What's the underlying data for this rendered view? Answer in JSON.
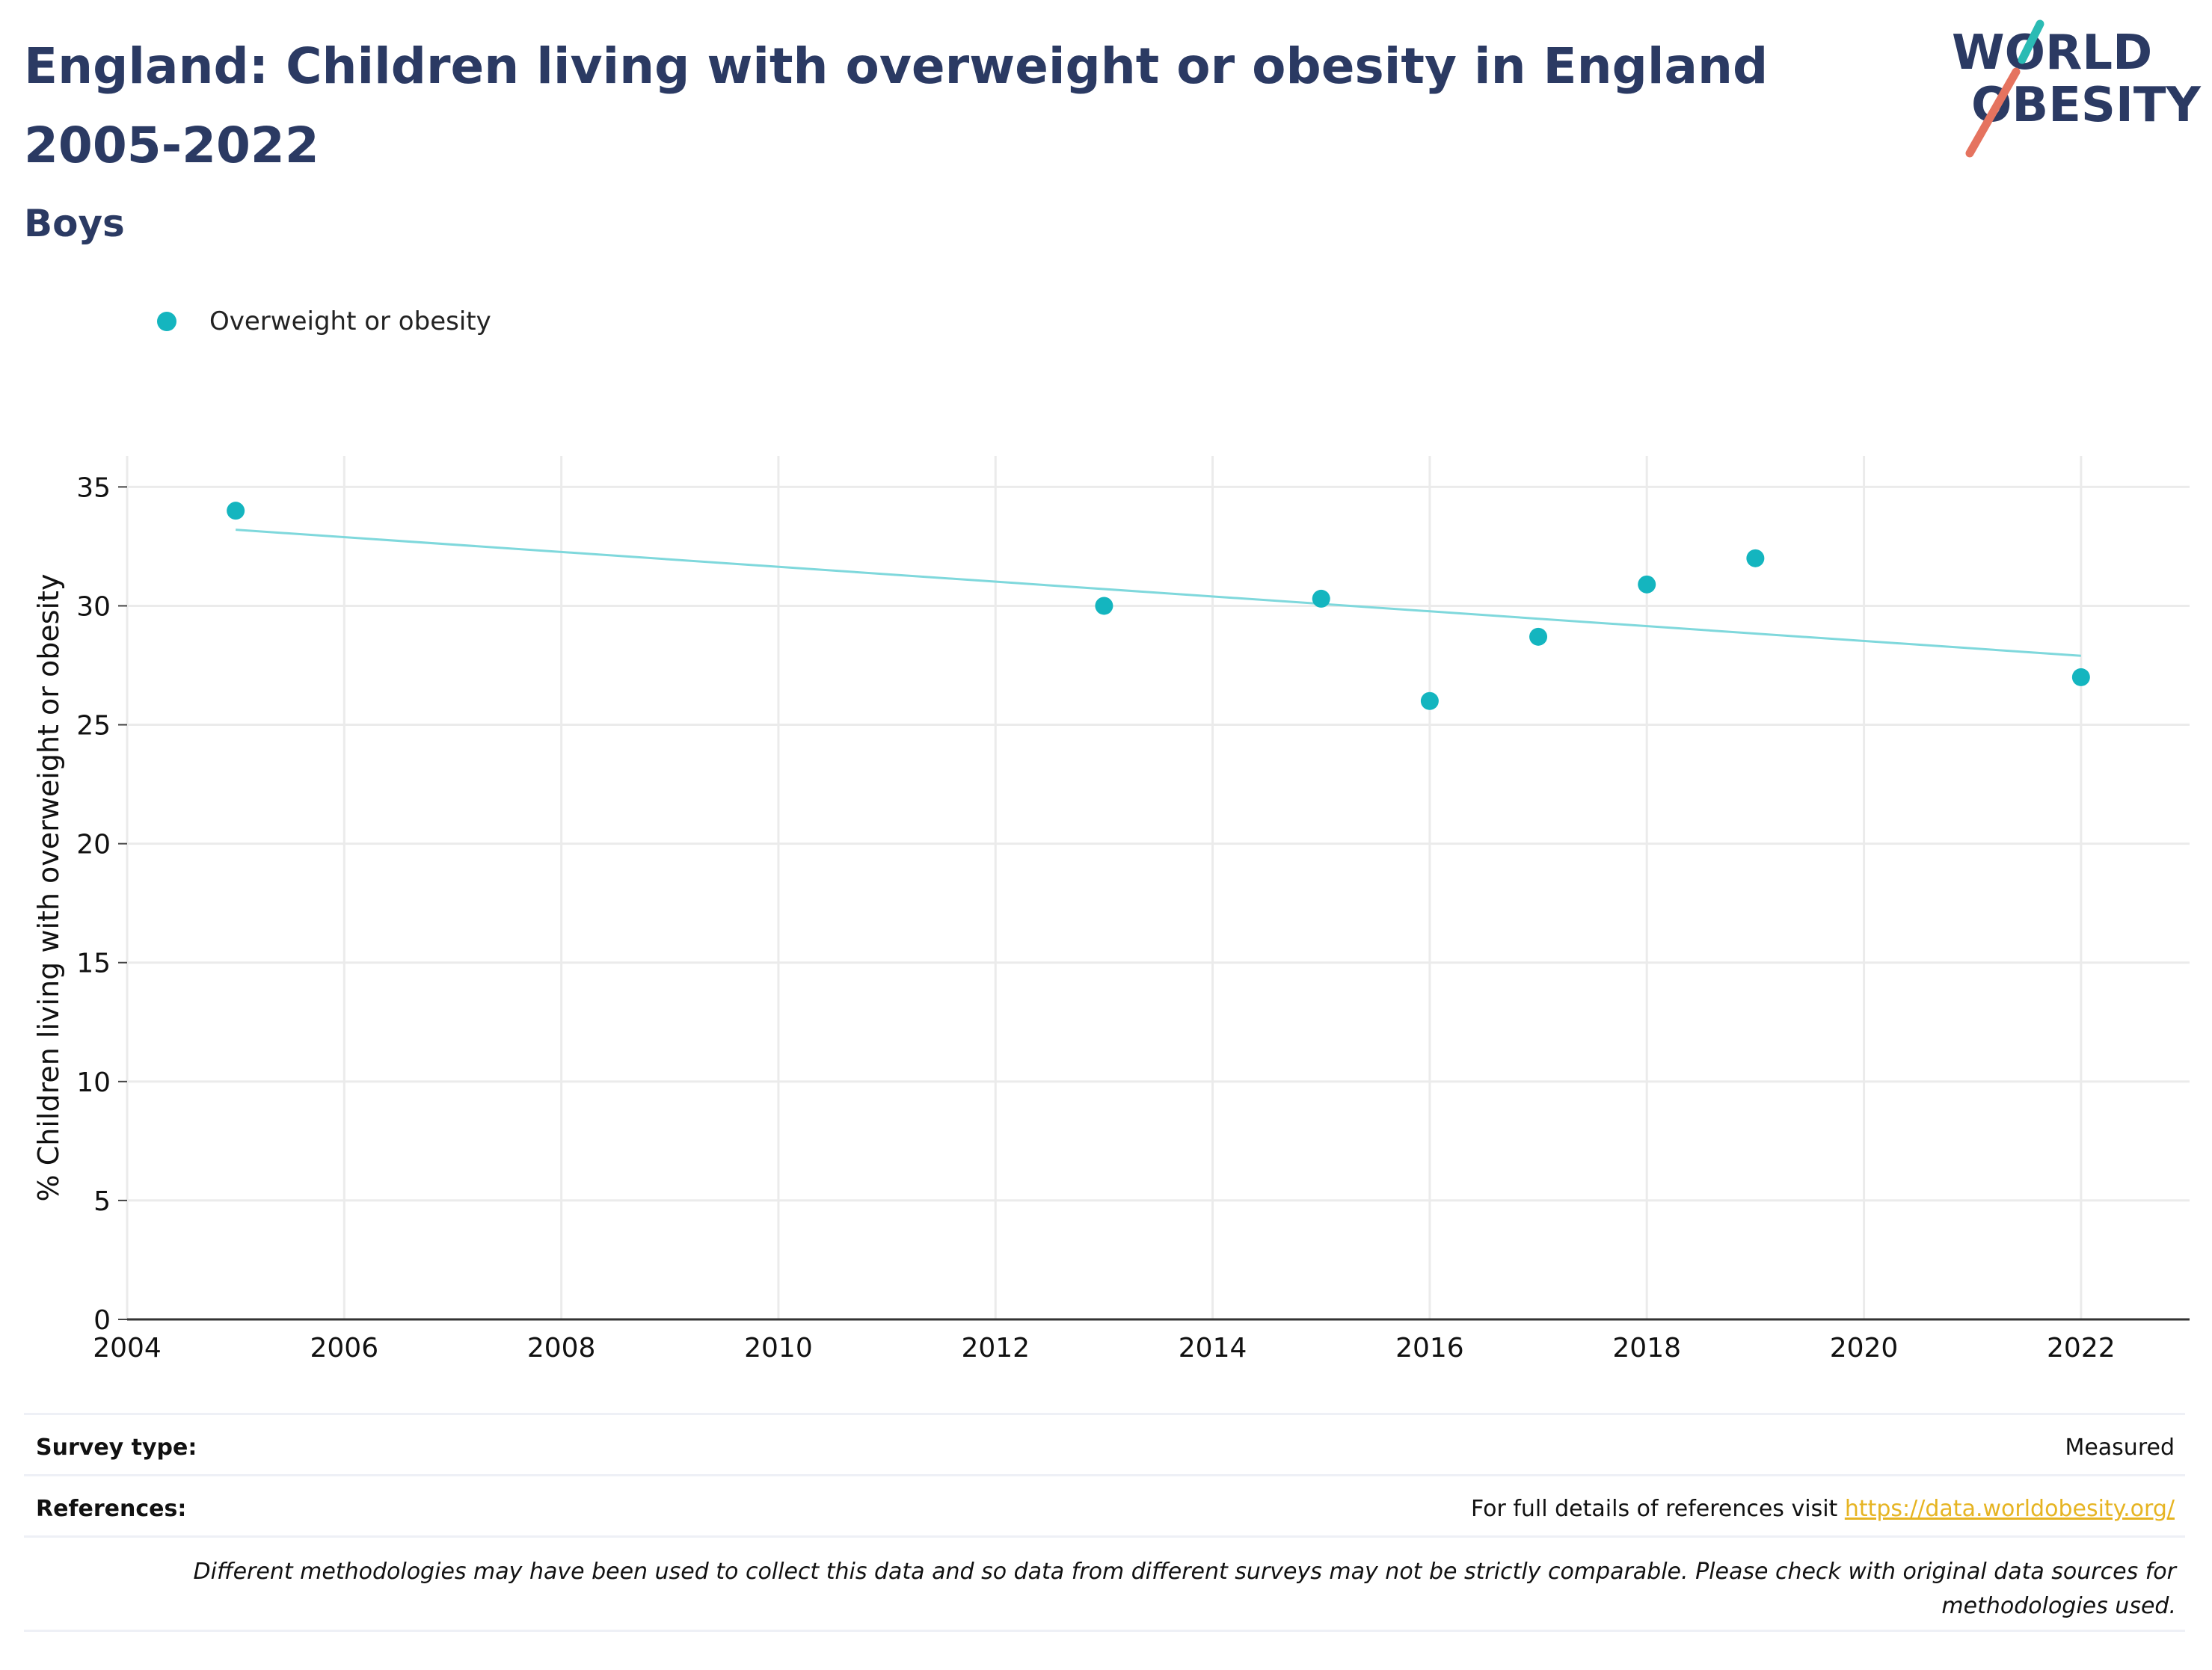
{
  "header": {
    "title": "England: Children living with overweight or obesity in England 2005-2022",
    "subtitle": "Boys"
  },
  "logo": {
    "line1": "WORLD",
    "line2": "OBESITY",
    "colors": {
      "text": "#2b3a63",
      "slash_teal": "#2bbbb4",
      "slash_coral": "#e5735f"
    }
  },
  "chart_data": {
    "type": "scatter",
    "title": "",
    "xlabel": "",
    "ylabel": "% Children living with overweight or obesity",
    "xlim": [
      2004,
      2023
    ],
    "ylim": [
      0,
      36.3
    ],
    "xticks": [
      2004,
      2006,
      2008,
      2010,
      2012,
      2014,
      2016,
      2018,
      2020,
      2022
    ],
    "yticks": [
      0,
      5,
      10,
      15,
      20,
      25,
      30,
      35
    ],
    "grid": true,
    "legend": "top-left",
    "series": [
      {
        "name": "Overweight or obesity",
        "color": "#14b5bf",
        "points": [
          {
            "x": 2005,
            "y": 34.0
          },
          {
            "x": 2013,
            "y": 30.0
          },
          {
            "x": 2015,
            "y": 30.3
          },
          {
            "x": 2016,
            "y": 26.0
          },
          {
            "x": 2017,
            "y": 28.7
          },
          {
            "x": 2018,
            "y": 30.9
          },
          {
            "x": 2019,
            "y": 32.0
          },
          {
            "x": 2022,
            "y": 27.0
          }
        ]
      }
    ],
    "trendline": {
      "color": "#7fd8dc",
      "x": [
        2005,
        2022
      ],
      "y": [
        33.2,
        27.9
      ]
    }
  },
  "footer": {
    "survey_label": "Survey type:",
    "survey_value": "Measured",
    "references_label": "References:",
    "references_text": "For full details of references visit ",
    "references_link": "https://data.worldobesity.org/",
    "note": "Different methodologies may have been used to collect this data and so data from different surveys may not be strictly comparable. Please check with original data sources for methodologies used."
  }
}
